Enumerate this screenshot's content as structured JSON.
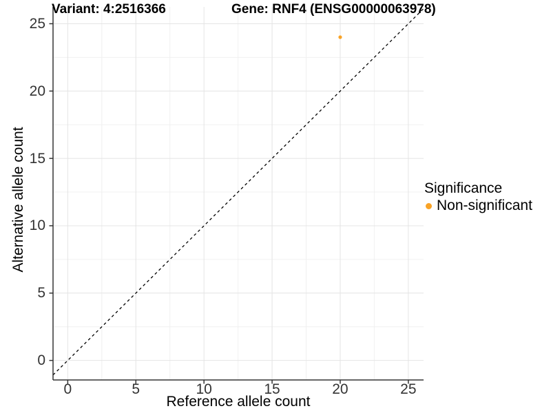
{
  "figure": {
    "title_left": "Variant: 4:2516366",
    "title_right": "Gene: RNF4 (ENSG00000063978)"
  },
  "axes": {
    "x_label": "Reference allele count",
    "y_label": "Alternative allele count"
  },
  "legend": {
    "title": "Significance",
    "items": [
      {
        "label": "Non-significant",
        "color": "#F9A326"
      }
    ]
  },
  "chart_data": {
    "type": "scatter",
    "title": "Variant: 4:2516366 / Gene: RNF4 (ENSG00000063978)",
    "xlabel": "Reference allele count",
    "ylabel": "Alternative allele count",
    "xlim": [
      -1.08,
      26.12
    ],
    "ylim": [
      -1.45,
      26.25
    ],
    "x_ticks": [
      0,
      5,
      10,
      15,
      20,
      25
    ],
    "y_ticks": [
      0,
      5,
      10,
      15,
      20,
      25
    ],
    "minor_ticks_x": [
      2.5,
      7.5,
      12.5,
      17.5,
      22.5
    ],
    "minor_ticks_y": [
      2.5,
      7.5,
      12.5,
      17.5,
      22.5
    ],
    "grid": true,
    "legend_position": "right",
    "series": [
      {
        "name": "Non-significant",
        "color": "#F9A326",
        "points": [
          {
            "x": 20,
            "y": 24
          }
        ]
      }
    ],
    "identity_line": {
      "slope": 1,
      "intercept": 0,
      "style": "dashed",
      "color": "#000000"
    }
  },
  "colors": {
    "background": "#FFFFFF",
    "grid_major": "#E4E4E4",
    "grid_minor": "#F0F0F0",
    "axis_line": "#333333",
    "tick_text": "#333333",
    "dashed_line": "#000000",
    "point": "#F9A326"
  }
}
